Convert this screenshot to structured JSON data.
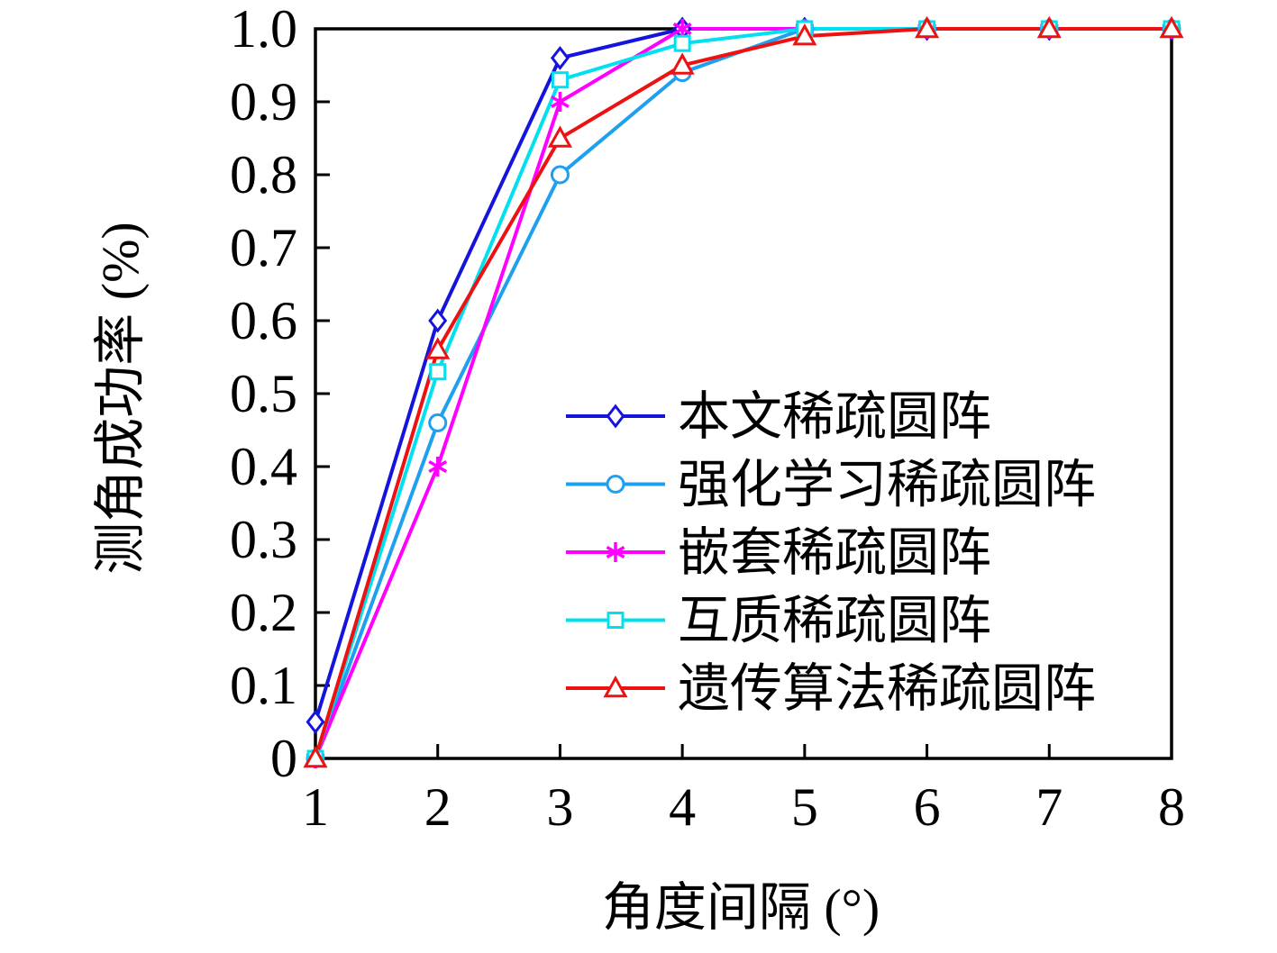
{
  "chart_data": {
    "type": "line",
    "title": "",
    "xlabel": "角度间隔 (°)",
    "ylabel": "测角成功率 (%)",
    "xlim": [
      1,
      8
    ],
    "ylim": [
      0,
      1.0
    ],
    "grid": false,
    "legend_position": "inside lower right",
    "axis_color": "#000000",
    "x": [
      1,
      2,
      3,
      4,
      5,
      6,
      7,
      8
    ],
    "xtick_labels": [
      "1",
      "2",
      "3",
      "4",
      "5",
      "6",
      "7",
      "8"
    ],
    "yticks": [
      0,
      0.1,
      0.2,
      0.3,
      0.4,
      0.5,
      0.6,
      0.7,
      0.8,
      0.9,
      1.0
    ],
    "ytick_labels": [
      "0",
      "0.1",
      "0.2",
      "0.3",
      "0.4",
      "0.5",
      "0.6",
      "0.7",
      "0.8",
      "0.9",
      "1.0"
    ],
    "series": [
      {
        "name": "本文稀疏圆阵",
        "marker": "diamond",
        "color": "#1414dc",
        "values": [
          0.05,
          0.6,
          0.96,
          1.0,
          1.0,
          1.0,
          1.0,
          1.0
        ]
      },
      {
        "name": "强化学习稀疏圆阵",
        "marker": "circle",
        "color": "#1e9ff0",
        "values": [
          0.0,
          0.46,
          0.8,
          0.94,
          1.0,
          1.0,
          1.0,
          1.0
        ]
      },
      {
        "name": "嵌套稀疏圆阵",
        "marker": "asterisk",
        "color": "#ff00ff",
        "values": [
          0.0,
          0.4,
          0.9,
          1.0,
          1.0,
          1.0,
          1.0,
          1.0
        ]
      },
      {
        "name": "互质稀疏圆阵",
        "marker": "square",
        "color": "#00e0ee",
        "values": [
          0.0,
          0.53,
          0.93,
          0.98,
          1.0,
          1.0,
          1.0,
          1.0
        ]
      },
      {
        "name": "遗传算法稀疏圆阵",
        "marker": "triangle",
        "color": "#ee1111",
        "values": [
          0.0,
          0.56,
          0.85,
          0.95,
          0.99,
          1.0,
          1.0,
          1.0
        ]
      }
    ]
  }
}
